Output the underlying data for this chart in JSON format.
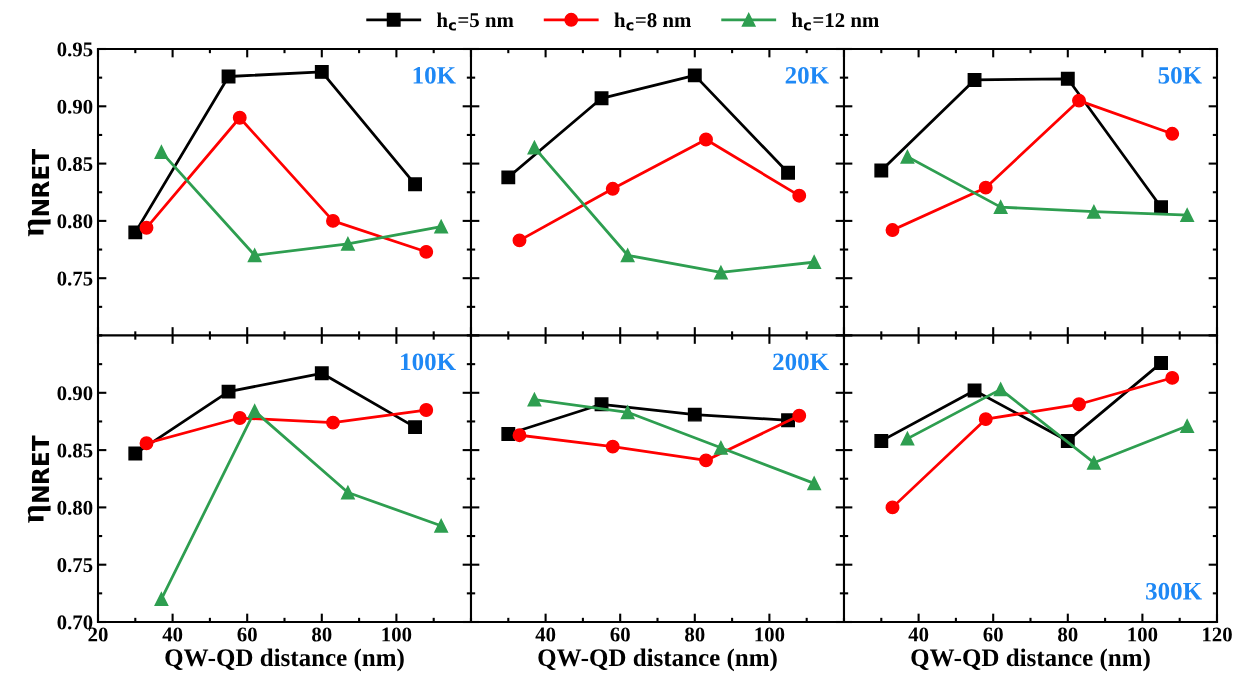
{
  "chart_data": [
    {
      "type": "line",
      "annotations": [
        "10K"
      ],
      "ylabel": "η$_{NRET}$",
      "legend": "top",
      "tick_labels": "y",
      "xlim": [
        20,
        120
      ],
      "xticks": [
        20,
        40,
        60,
        80,
        100,
        120
      ],
      "ylim": [
        0.7,
        0.95
      ],
      "yticks": [
        {
          "value": 0.75,
          "label": "0.75"
        },
        {
          "value": 0.8,
          "label": "0.80"
        },
        {
          "value": 0.85,
          "label": "0.85"
        },
        {
          "value": 0.9,
          "label": "0.90"
        },
        {
          "value": 0.95,
          "label": "0.95"
        }
      ],
      "series": [
        {
          "name": "h$_{c}$=5 nm",
          "color": "#000000",
          "marker": "square",
          "x": [
            30,
            55,
            80,
            105
          ],
          "values": [
            0.79,
            0.926,
            0.93,
            0.832
          ]
        },
        {
          "name": "h$_{c}$=8 nm",
          "color": "#ff0000",
          "marker": "circle",
          "x": [
            33,
            58,
            83,
            108
          ],
          "values": [
            0.794,
            0.89,
            0.8,
            0.773
          ]
        },
        {
          "name": "h$_{c}$=12 nm",
          "color": "#2e9e50",
          "marker": "triangle",
          "x": [
            37,
            62,
            87,
            112
          ],
          "values": [
            0.86,
            0.77,
            0.78,
            0.795
          ]
        }
      ]
    },
    {
      "type": "line",
      "annotations": [
        "20K"
      ],
      "tick_labels": false,
      "xlim": [
        20,
        120
      ],
      "xticks": [
        20,
        40,
        60,
        80,
        100,
        120
      ],
      "ylim": [
        0.7,
        0.95
      ],
      "yticks": [
        0.7,
        0.75,
        0.8,
        0.85,
        0.9,
        0.95
      ],
      "series": [
        {
          "color": "#000000",
          "marker": "square",
          "x": [
            30,
            55,
            80,
            105
          ],
          "values": [
            0.838,
            0.907,
            0.927,
            0.842
          ]
        },
        {
          "color": "#ff0000",
          "marker": "circle",
          "x": [
            33,
            58,
            83,
            108
          ],
          "values": [
            0.783,
            0.828,
            0.871,
            0.822
          ]
        },
        {
          "color": "#2e9e50",
          "marker": "triangle",
          "x": [
            37,
            62,
            87,
            112
          ],
          "values": [
            0.864,
            0.77,
            0.755,
            0.764
          ]
        }
      ]
    },
    {
      "type": "line",
      "annotations": [
        "50K"
      ],
      "tick_labels": false,
      "xlim": [
        20,
        120
      ],
      "xticks": [
        20,
        40,
        60,
        80,
        100,
        120
      ],
      "ylim": [
        0.7,
        0.95
      ],
      "yticks": [
        0.7,
        0.75,
        0.8,
        0.85,
        0.9,
        0.95
      ],
      "series": [
        {
          "color": "#000000",
          "marker": "square",
          "x": [
            30,
            55,
            80,
            105
          ],
          "values": [
            0.844,
            0.923,
            0.924,
            0.812
          ]
        },
        {
          "color": "#ff0000",
          "marker": "circle",
          "x": [
            33,
            58,
            83,
            108
          ],
          "values": [
            0.792,
            0.829,
            0.905,
            0.876
          ]
        },
        {
          "color": "#2e9e50",
          "marker": "triangle",
          "x": [
            37,
            62,
            87,
            112
          ],
          "values": [
            0.856,
            0.812,
            0.808,
            0.805
          ]
        }
      ]
    },
    {
      "type": "line",
      "annotations": [
        "100K"
      ],
      "xlabel": "QW-QD distance (nm)",
      "ylabel": "η$_{NRET}$",
      "xlim": [
        20,
        120
      ],
      "xticks": [
        20,
        40,
        60,
        80,
        100
      ],
      "ylim": [
        0.7,
        0.95
      ],
      "yticks": [
        {
          "value": 0.7,
          "label": "0.70"
        },
        {
          "value": 0.75,
          "label": "0.75"
        },
        {
          "value": 0.8,
          "label": "0.80"
        },
        {
          "value": 0.85,
          "label": "0.85"
        },
        {
          "value": 0.9,
          "label": "0.90"
        }
      ],
      "series": [
        {
          "color": "#000000",
          "marker": "square",
          "x": [
            30,
            55,
            80,
            105
          ],
          "values": [
            0.847,
            0.901,
            0.917,
            0.87
          ]
        },
        {
          "color": "#ff0000",
          "marker": "circle",
          "x": [
            33,
            58,
            83,
            108
          ],
          "values": [
            0.856,
            0.878,
            0.874,
            0.885
          ]
        },
        {
          "color": "#2e9e50",
          "marker": "triangle",
          "x": [
            37,
            62,
            87,
            112
          ],
          "values": [
            0.72,
            0.884,
            0.813,
            0.784
          ]
        }
      ]
    },
    {
      "type": "line",
      "annotations": [
        "200K"
      ],
      "xlabel": "QW-QD distance (nm)",
      "tick_labels": "x",
      "xlim": [
        20,
        120
      ],
      "xticks": [
        40,
        60,
        80,
        100
      ],
      "ylim": [
        0.7,
        0.95
      ],
      "yticks": [
        0.7,
        0.75,
        0.8,
        0.85,
        0.9,
        0.95
      ],
      "series": [
        {
          "color": "#000000",
          "marker": "square",
          "x": [
            30,
            55,
            80,
            105
          ],
          "values": [
            0.864,
            0.89,
            0.881,
            0.876
          ]
        },
        {
          "color": "#ff0000",
          "marker": "circle",
          "x": [
            33,
            58,
            83,
            108
          ],
          "values": [
            0.863,
            0.853,
            0.841,
            0.88
          ]
        },
        {
          "color": "#2e9e50",
          "marker": "triangle",
          "x": [
            37,
            62,
            87,
            112
          ],
          "values": [
            0.894,
            0.883,
            0.852,
            0.821
          ]
        }
      ]
    },
    {
      "type": "line",
      "annotations": [
        "300K"
      ],
      "xlabel": "QW-QD distance (nm)",
      "tick_labels": "x",
      "xlim": [
        20,
        120
      ],
      "xticks": [
        40,
        60,
        80,
        100,
        120
      ],
      "ylim": [
        0.7,
        0.95
      ],
      "yticks": [
        0.7,
        0.75,
        0.8,
        0.85,
        0.9,
        0.95
      ],
      "series": [
        {
          "color": "#000000",
          "marker": "square",
          "x": [
            30,
            55,
            80,
            105
          ],
          "values": [
            0.858,
            0.902,
            0.858,
            0.926
          ]
        },
        {
          "color": "#ff0000",
          "marker": "circle",
          "x": [
            33,
            58,
            83,
            108
          ],
          "values": [
            0.8,
            0.877,
            0.89,
            0.913
          ]
        },
        {
          "color": "#2e9e50",
          "marker": "triangle",
          "x": [
            37,
            62,
            87,
            112
          ],
          "values": [
            0.86,
            0.903,
            0.839,
            0.871
          ]
        }
      ]
    }
  ]
}
